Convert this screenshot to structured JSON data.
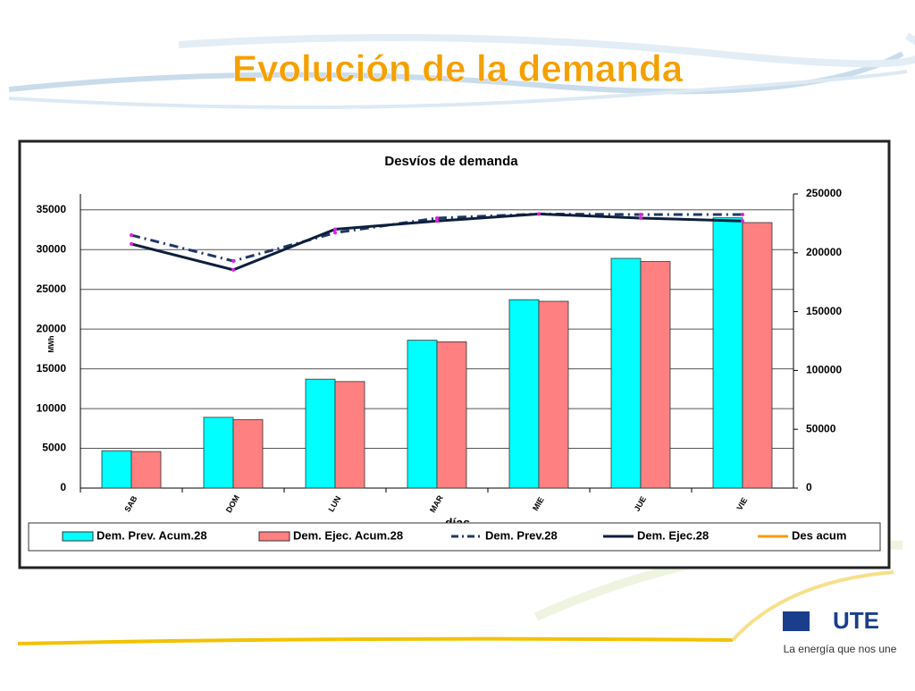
{
  "slide_title": "Evolución de la demanda",
  "logo": {
    "name": "UTE",
    "tagline": "La energía que nos une"
  },
  "chart_data": {
    "type": "bar",
    "title": "Desvíos de demanda",
    "x_label": "días",
    "y_label": "MWh",
    "categories": [
      "SAB",
      "DOM",
      "LUN",
      "MAR",
      "MIE",
      "JUE",
      "VIE"
    ],
    "ylim": [
      0,
      37000
    ],
    "yticks": [
      0,
      5000,
      10000,
      15000,
      20000,
      25000,
      30000,
      35000
    ],
    "y2lim": [
      0,
      250000
    ],
    "y2ticks": [
      0,
      50000,
      100000,
      150000,
      200000,
      250000
    ],
    "grid": true,
    "series": [
      {
        "name": "Dem. Prev. Acum.28",
        "type": "bar",
        "color": "#00ffff",
        "values": [
          4700,
          8900,
          13700,
          18600,
          23700,
          28900,
          34000
        ]
      },
      {
        "name": "Dem. Ejec. Acum.28",
        "type": "bar",
        "color": "#ff8080",
        "values": [
          4600,
          8600,
          13400,
          18400,
          23500,
          28500,
          33400
        ]
      },
      {
        "name": "Dem. Prev.28",
        "type": "line",
        "dash": true,
        "axis": "y2",
        "color": "#1f3864",
        "values": [
          215000,
          193000,
          217000,
          229500,
          233000,
          232500,
          232500
        ]
      },
      {
        "name": "Dem. Ejec.28",
        "type": "line",
        "dash": false,
        "axis": "y2",
        "color": "#0d1f3c",
        "values": [
          207500,
          185500,
          220000,
          227000,
          233000,
          229500,
          227000
        ]
      },
      {
        "name": "Des acum",
        "type": "line",
        "dash": false,
        "axis": "y2",
        "color": "#ff9900",
        "values": [
          null,
          null,
          null,
          null,
          null,
          null,
          null
        ]
      }
    ]
  }
}
